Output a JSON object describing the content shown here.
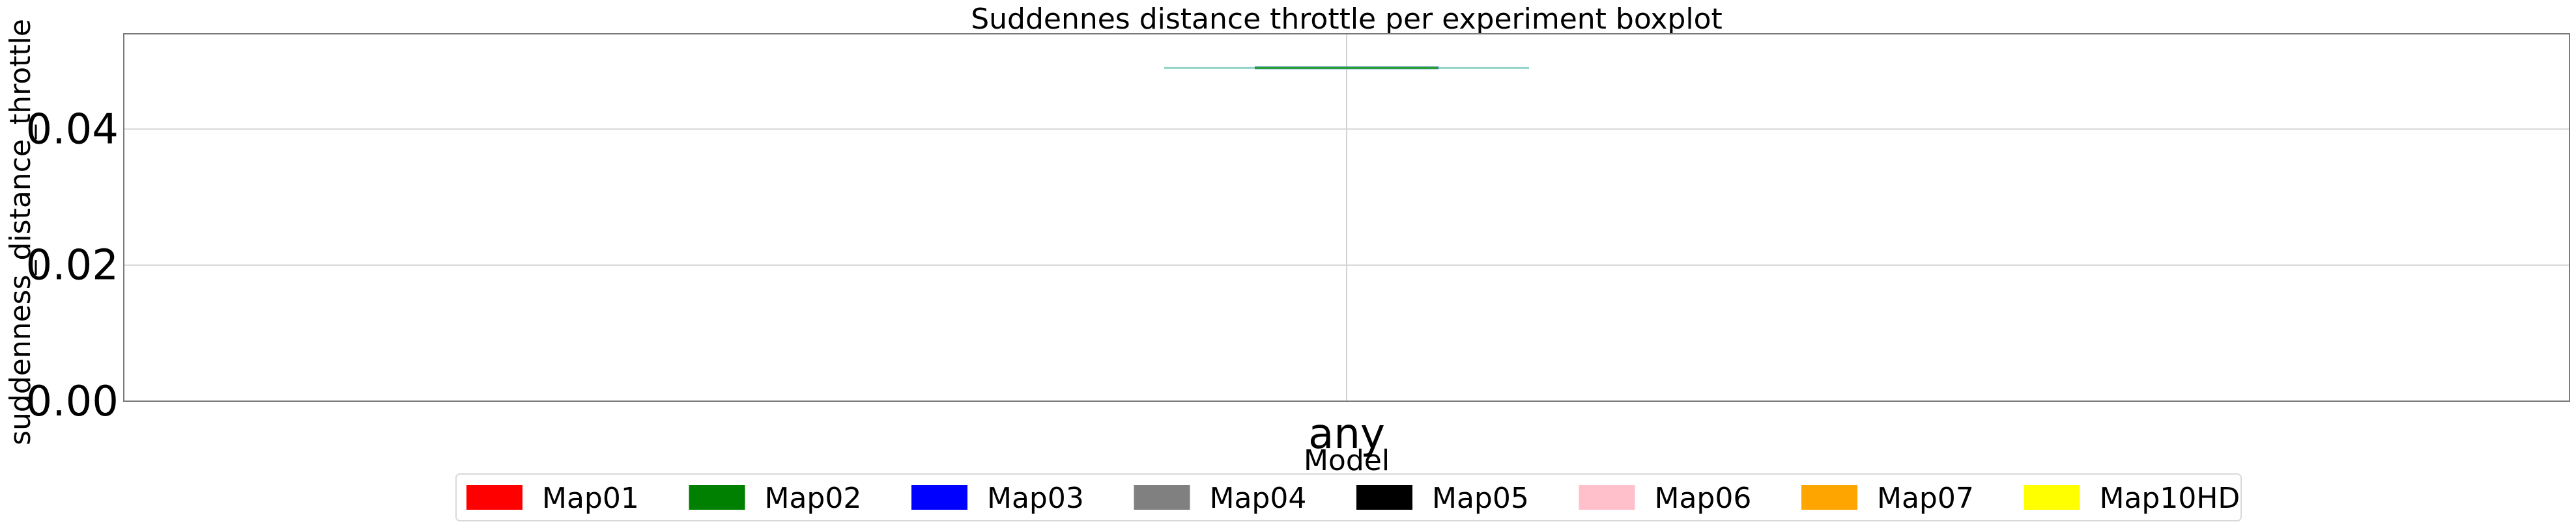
{
  "chart_data": {
    "type": "boxplot",
    "title": "Suddennes distance throttle per experiment boxplot",
    "xlabel": "Model",
    "ylabel": "suddenness_distance_throttle",
    "categories": [
      "any"
    ],
    "ylim": [
      0.0,
      0.054
    ],
    "yticks": [
      {
        "value": 0.0,
        "label": "0.00"
      },
      {
        "value": 0.02,
        "label": "0.02"
      },
      {
        "value": 0.04,
        "label": "0.04"
      }
    ],
    "grid": true,
    "legend_position": "bottom-center",
    "boxes": [
      {
        "category": "any",
        "whisker_low": 0.049,
        "q1": 0.049,
        "median": 0.049,
        "q3": 0.049,
        "whisker_high": 0.049
      }
    ],
    "legend": [
      {
        "name": "Map01",
        "color": "#ff0000"
      },
      {
        "name": "Map02",
        "color": "#008000"
      },
      {
        "name": "Map03",
        "color": "#0000ff"
      },
      {
        "name": "Map04",
        "color": "#808080"
      },
      {
        "name": "Map05",
        "color": "#000000"
      },
      {
        "name": "Map06",
        "color": "#ffc0cb"
      },
      {
        "name": "Map07",
        "color": "#ffa500"
      },
      {
        "name": "Map10HD",
        "color": "#ffff00"
      }
    ],
    "colors": {
      "median_line": "#2ca02c",
      "box_edge": "#1f77b4"
    }
  }
}
